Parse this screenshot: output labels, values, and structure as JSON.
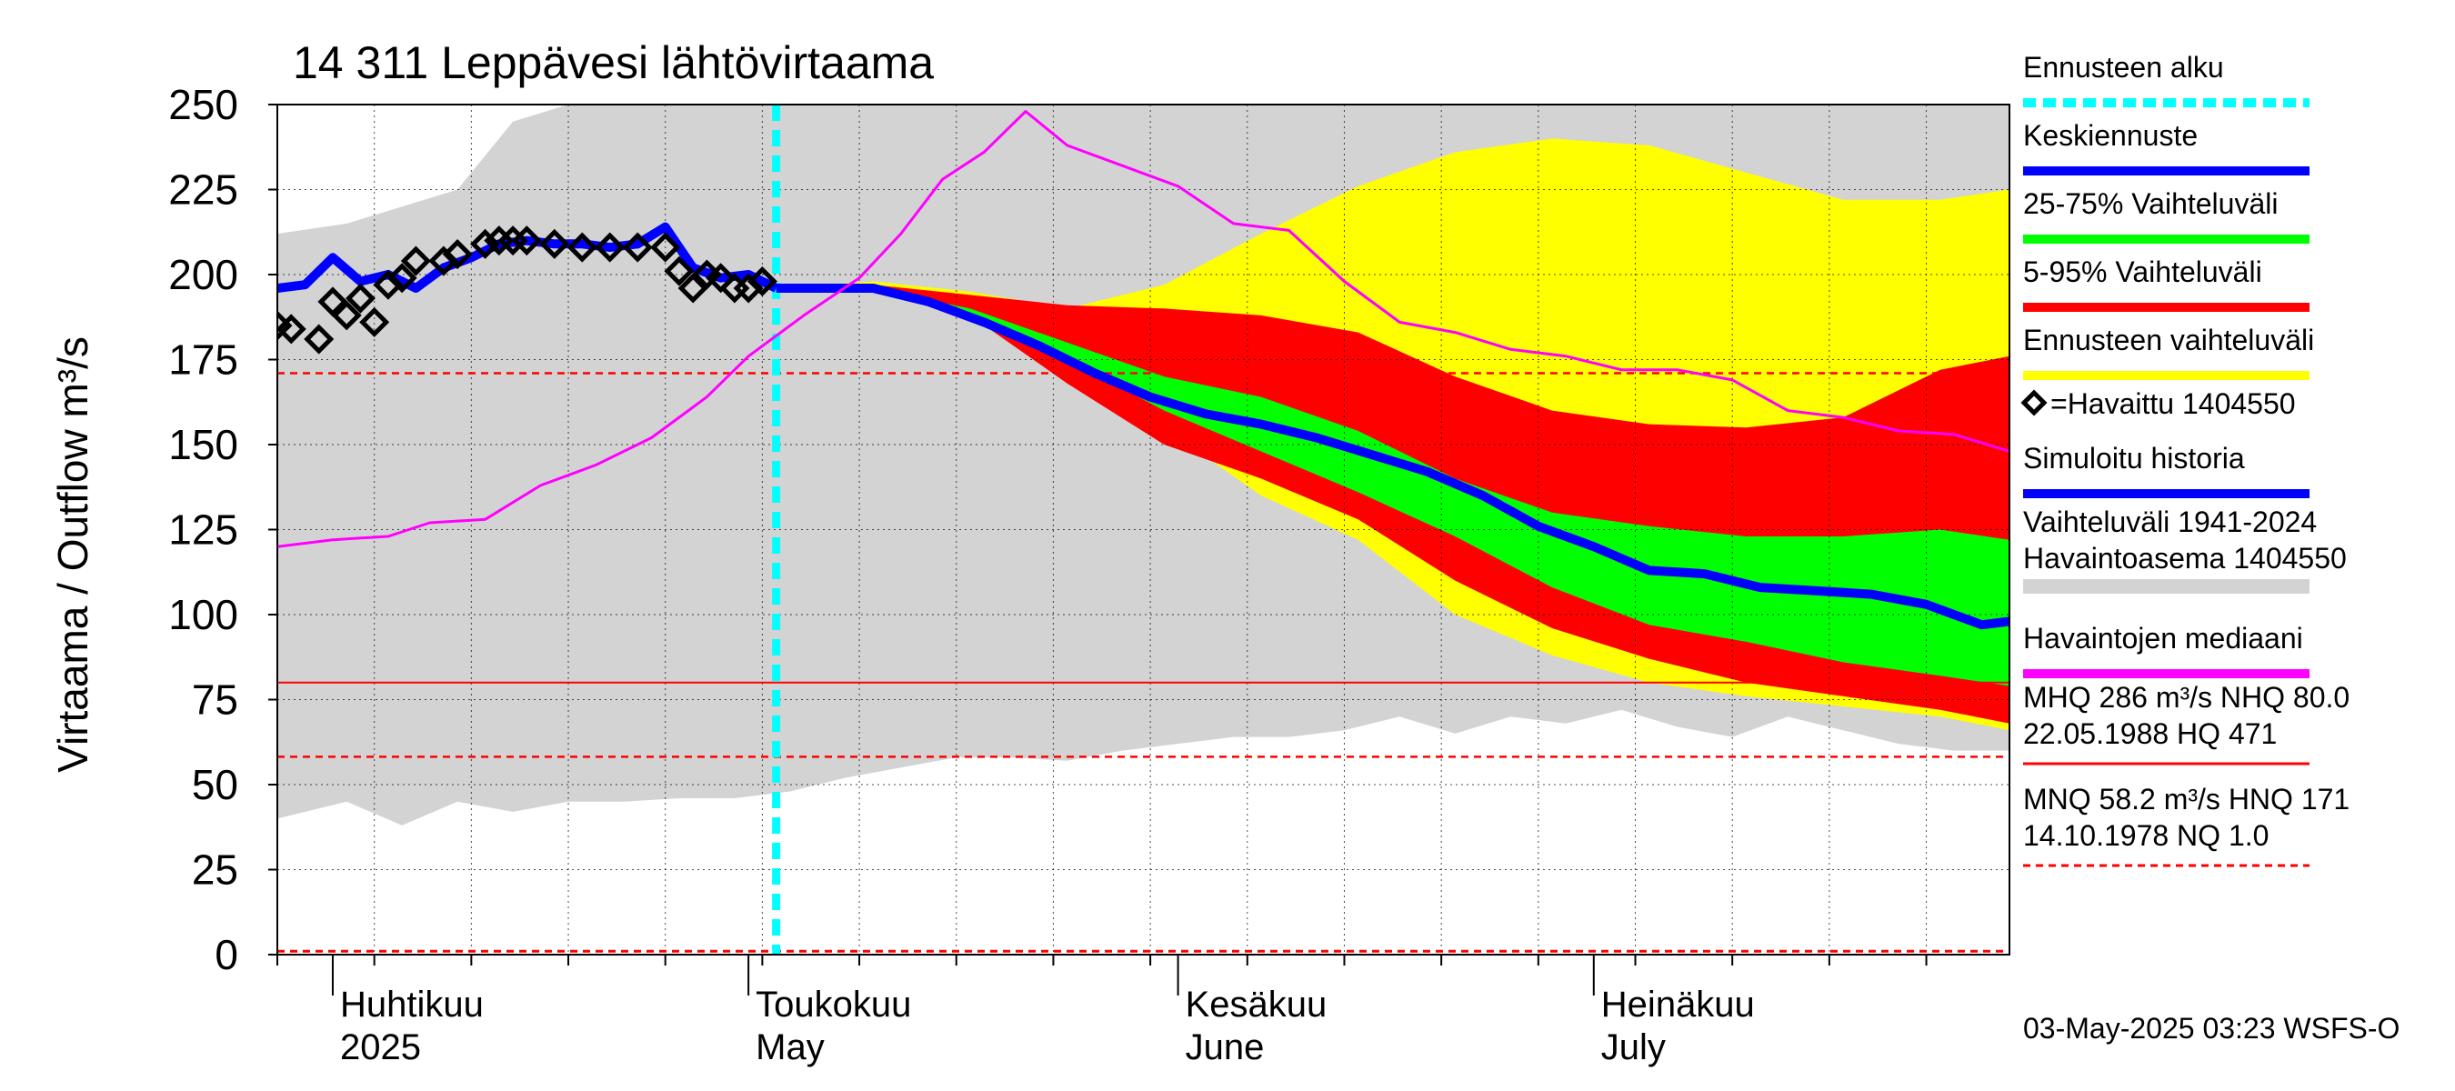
{
  "chart_data": {
    "type": "line",
    "title": "14 311 Leppävesi lähtövirtaama",
    "ylabel": "Virtaama / Outflow    m³/s",
    "ylim": [
      0,
      250
    ],
    "yticks": [
      0,
      25,
      50,
      75,
      100,
      125,
      150,
      175,
      200,
      225,
      250
    ],
    "xlim": [
      "2025-03-28",
      "2025-07-31"
    ],
    "x_month_labels": [
      {
        "date": "2025-04-01",
        "line1": "Huhtikuu",
        "line2": "2025"
      },
      {
        "date": "2025-05-01",
        "line1": "Toukokuu",
        "line2": "May"
      },
      {
        "date": "2025-06-01",
        "line1": "Kesäkuu",
        "line2": "June"
      },
      {
        "date": "2025-07-01",
        "line1": "Heinäkuu",
        "line2": "July"
      }
    ],
    "grid": true,
    "forecast_start": "2025-05-03",
    "reference_lines": {
      "MHQ": 286,
      "NHQ": 80.0,
      "HQ": 471,
      "MNQ": 58.2,
      "HNQ": 171,
      "NQ": 1.0
    },
    "bands": {
      "history_range": {
        "x": [
          "2025-03-28",
          "2025-04-02",
          "2025-04-06",
          "2025-04-10",
          "2025-04-14",
          "2025-04-18",
          "2025-04-22",
          "2025-04-26",
          "2025-04-30",
          "2025-05-04",
          "2025-05-08",
          "2025-05-12",
          "2025-05-16",
          "2025-05-20",
          "2025-05-24",
          "2025-05-28",
          "2025-06-01",
          "2025-06-05",
          "2025-06-09",
          "2025-06-13",
          "2025-06-17",
          "2025-06-21",
          "2025-06-25",
          "2025-06-29",
          "2025-07-03",
          "2025-07-07",
          "2025-07-11",
          "2025-07-15",
          "2025-07-19",
          "2025-07-23",
          "2025-07-27",
          "2025-07-31"
        ],
        "upper": [
          212,
          215,
          220,
          225,
          245,
          250,
          250,
          250,
          250,
          250,
          250,
          250,
          250,
          250,
          250,
          250,
          250,
          250,
          250,
          250,
          250,
          250,
          250,
          250,
          250,
          250,
          250,
          250,
          250,
          250,
          250,
          250
        ],
        "lower": [
          40,
          45,
          38,
          45,
          42,
          45,
          45,
          46,
          46,
          48,
          52,
          55,
          58,
          58,
          57,
          60,
          62,
          64,
          64,
          66,
          70,
          65,
          70,
          68,
          72,
          67,
          64,
          70,
          66,
          62,
          60,
          60
        ]
      },
      "forecast_range": {
        "x": [
          "2025-05-03",
          "2025-05-10",
          "2025-05-17",
          "2025-05-24",
          "2025-05-31",
          "2025-06-07",
          "2025-06-14",
          "2025-06-21",
          "2025-06-28",
          "2025-07-05",
          "2025-07-12",
          "2025-07-19",
          "2025-07-26",
          "2025-07-31"
        ],
        "upper": [
          196,
          198,
          195,
          190,
          197,
          212,
          226,
          236,
          240,
          238,
          230,
          222,
          222,
          225
        ],
        "lower": [
          196,
          197,
          190,
          175,
          155,
          135,
          122,
          100,
          88,
          80,
          76,
          73,
          70,
          66
        ]
      },
      "range_5_95": {
        "x": [
          "2025-05-03",
          "2025-05-10",
          "2025-05-17",
          "2025-05-24",
          "2025-05-31",
          "2025-06-07",
          "2025-06-14",
          "2025-06-21",
          "2025-06-28",
          "2025-07-05",
          "2025-07-12",
          "2025-07-19",
          "2025-07-26",
          "2025-07-31"
        ],
        "upper": [
          196,
          197,
          194,
          191,
          190,
          188,
          183,
          170,
          160,
          156,
          155,
          158,
          172,
          176
        ],
        "lower": [
          196,
          196,
          188,
          168,
          150,
          140,
          128,
          110,
          96,
          87,
          80,
          76,
          72,
          68
        ]
      },
      "range_25_75": {
        "x": [
          "2025-05-03",
          "2025-05-10",
          "2025-05-17",
          "2025-05-24",
          "2025-05-31",
          "2025-06-07",
          "2025-06-14",
          "2025-06-21",
          "2025-06-28",
          "2025-07-05",
          "2025-07-12",
          "2025-07-19",
          "2025-07-26",
          "2025-07-31"
        ],
        "upper": [
          196,
          196,
          190,
          180,
          170,
          164,
          154,
          140,
          130,
          126,
          123,
          123,
          125,
          122
        ],
        "lower": [
          196,
          195,
          188,
          175,
          160,
          148,
          136,
          123,
          108,
          97,
          92,
          86,
          82,
          79
        ]
      }
    },
    "series": [
      {
        "name": "Keskiennuste",
        "color": "#0000ff",
        "x": [
          "2025-05-03",
          "2025-05-06",
          "2025-05-10",
          "2025-05-14",
          "2025-05-18",
          "2025-05-22",
          "2025-05-26",
          "2025-05-30",
          "2025-06-03",
          "2025-06-07",
          "2025-06-11",
          "2025-06-15",
          "2025-06-19",
          "2025-06-23",
          "2025-06-27",
          "2025-07-01",
          "2025-07-05",
          "2025-07-09",
          "2025-07-13",
          "2025-07-17",
          "2025-07-21",
          "2025-07-25",
          "2025-07-29",
          "2025-07-31"
        ],
        "y": [
          196,
          196,
          196,
          192,
          186,
          179,
          171,
          164,
          159,
          156,
          152,
          147,
          142,
          135,
          126,
          120,
          113,
          112,
          108,
          107,
          106,
          103,
          97,
          98
        ]
      },
      {
        "name": "Simuloitu historia",
        "color": "#0000ff",
        "x": [
          "2025-03-28",
          "2025-03-30",
          "2025-04-01",
          "2025-04-03",
          "2025-04-05",
          "2025-04-07",
          "2025-04-09",
          "2025-04-11",
          "2025-04-13",
          "2025-04-15",
          "2025-04-17",
          "2025-04-19",
          "2025-04-21",
          "2025-04-23",
          "2025-04-25",
          "2025-04-27",
          "2025-04-29",
          "2025-05-01",
          "2025-05-03"
        ],
        "y": [
          196,
          197,
          205,
          198,
          200,
          196,
          202,
          205,
          209,
          210,
          209,
          209,
          208,
          209,
          214,
          202,
          199,
          200,
          196
        ]
      },
      {
        "name": "Havaintojen mediaani",
        "color": "#ff00ff",
        "x": [
          "2025-03-28",
          "2025-04-01",
          "2025-04-05",
          "2025-04-08",
          "2025-04-12",
          "2025-04-16",
          "2025-04-20",
          "2025-04-24",
          "2025-04-28",
          "2025-05-01",
          "2025-05-05",
          "2025-05-09",
          "2025-05-12",
          "2025-05-15",
          "2025-05-18",
          "2025-05-21",
          "2025-05-24",
          "2025-05-28",
          "2025-06-01",
          "2025-06-05",
          "2025-06-09",
          "2025-06-13",
          "2025-06-17",
          "2025-06-21",
          "2025-06-25",
          "2025-06-29",
          "2025-07-03",
          "2025-07-07",
          "2025-07-11",
          "2025-07-15",
          "2025-07-19",
          "2025-07-23",
          "2025-07-27",
          "2025-07-31"
        ],
        "y": [
          120,
          122,
          123,
          127,
          128,
          138,
          144,
          152,
          164,
          176,
          188,
          199,
          212,
          228,
          236,
          248,
          238,
          232,
          226,
          215,
          213,
          198,
          186,
          183,
          178,
          176,
          172,
          172,
          169,
          160,
          158,
          154,
          153,
          148
        ]
      },
      {
        "name": "Havaittu 1404550",
        "color": "#000000",
        "marker": "diamond",
        "x": [
          "2025-03-28",
          "2025-03-29",
          "2025-03-31",
          "2025-04-01",
          "2025-04-02",
          "2025-04-03",
          "2025-04-04",
          "2025-04-05",
          "2025-04-06",
          "2025-04-07",
          "2025-04-09",
          "2025-04-10",
          "2025-04-12",
          "2025-04-13",
          "2025-04-14",
          "2025-04-15",
          "2025-04-17",
          "2025-04-19",
          "2025-04-21",
          "2025-04-23",
          "2025-04-25",
          "2025-04-26",
          "2025-04-27",
          "2025-04-28",
          "2025-04-29",
          "2025-04-30",
          "2025-05-01",
          "2025-05-02"
        ],
        "y": [
          185,
          184,
          181,
          192,
          188,
          193,
          186,
          197,
          199,
          204,
          204,
          206,
          209,
          210,
          210,
          210,
          209,
          208,
          208,
          208,
          208,
          201,
          196,
          200,
          199,
          196,
          196,
          198
        ]
      }
    ],
    "legend": [
      {
        "label": "Ennusteen alku",
        "color": "#00ffff",
        "style": "dashed"
      },
      {
        "label": "Keskiennuste",
        "color": "#0000ff",
        "style": "solid"
      },
      {
        "label": "25-75% Vaihteluväli",
        "color": "#00ff00",
        "style": "solid"
      },
      {
        "label": "5-95% Vaihteluväli",
        "color": "#ff0000",
        "style": "solid"
      },
      {
        "label": "Ennusteen vaihteluväli",
        "color": "#ffff00",
        "style": "solid"
      },
      {
        "label": "=Havaittu 1404550",
        "color": "#000000",
        "style": "marker"
      },
      {
        "label": "Simuloitu historia",
        "color": "#0000ff",
        "style": "solid"
      },
      {
        "label": "Vaihteluväli 1941-2024",
        "label2": " Havaintoasema 1404550",
        "color": "#d3d3d3",
        "style": "solid"
      },
      {
        "label": "Havaintojen mediaani",
        "color": "#ff00ff",
        "style": "solid"
      },
      {
        "label": "MHQ  286 m³/s NHQ 80.0",
        "label2": "22.05.1988 HQ  471",
        "color": "#ff0000",
        "style": "solid"
      },
      {
        "label": "MNQ 58.2 m³/s HNQ  171",
        "label2": "14.10.1978 NQ  1.0",
        "color": "#ff0000",
        "style": "dashed"
      }
    ],
    "legend_position": "right",
    "footer": "03-May-2025 03:23 WSFS-O",
    "colors": {
      "history_range": "#d3d3d3",
      "forecast_range": "#ffff00",
      "range_5_95": "#ff0000",
      "range_25_75": "#00ff00",
      "forecast_start": "#00ffff",
      "reference": "#ff0000"
    }
  }
}
